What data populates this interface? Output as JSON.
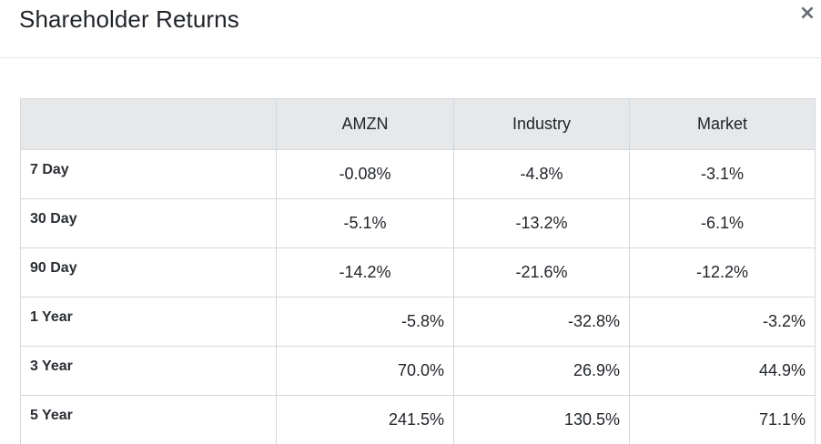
{
  "modal": {
    "title": "Shareholder Returns",
    "close_label": "×"
  },
  "table": {
    "columns": [
      "",
      "AMZN",
      "Industry",
      "Market"
    ],
    "rows": [
      {
        "label": "7 Day",
        "values": [
          "-0.08%",
          "-4.8%",
          "-3.1%"
        ],
        "align": "center"
      },
      {
        "label": "30 Day",
        "values": [
          "-5.1%",
          "-13.2%",
          "-6.1%"
        ],
        "align": "center"
      },
      {
        "label": "90 Day",
        "values": [
          "-14.2%",
          "-21.6%",
          "-12.2%"
        ],
        "align": "center"
      },
      {
        "label": "1 Year",
        "values": [
          "-5.8%",
          "-32.8%",
          "-3.2%"
        ],
        "align": "right"
      },
      {
        "label": "3 Year",
        "values": [
          "70.0%",
          "26.9%",
          "44.9%"
        ],
        "align": "right"
      },
      {
        "label": "5 Year",
        "values": [
          "241.5%",
          "130.5%",
          "71.1%"
        ],
        "align": "right"
      }
    ]
  }
}
